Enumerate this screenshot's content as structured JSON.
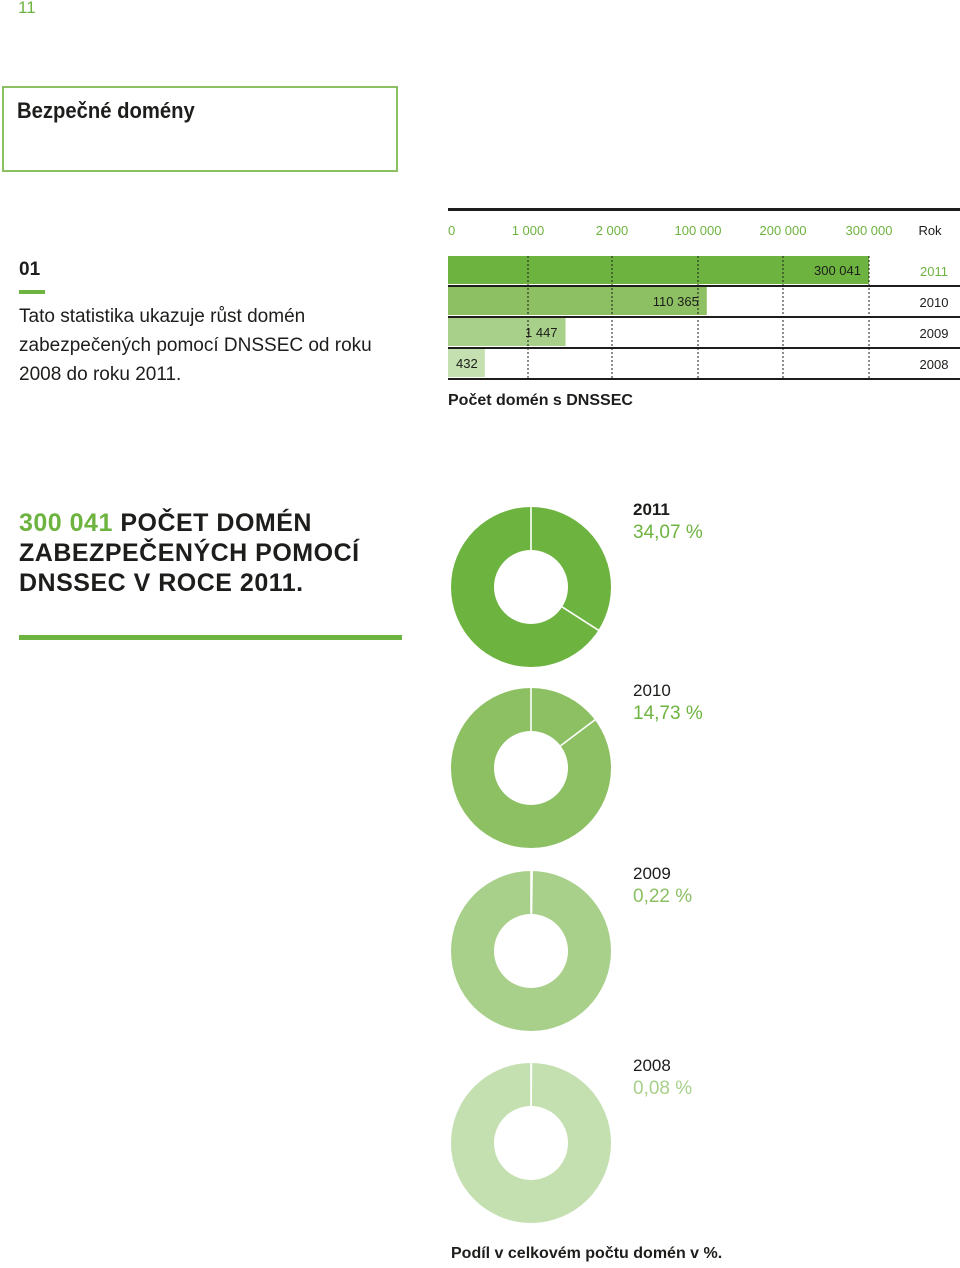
{
  "page_number": "11",
  "title": "Bezpečné domény",
  "section": {
    "number": "01",
    "description": "Tato statistika ukazuje růst domén zabezpečených pomocí DNSSEC od roku 2008 do roku 2011."
  },
  "highlight": {
    "number": "300 041",
    "text": " POČET DOMÉN ZABEZPEČENÝCH POMOCÍ DNSSEC V ROCE 2011."
  },
  "colors": {
    "y2011": "#6db33f",
    "y2010": "#8cc063",
    "y2009": "#a8d08a",
    "y2008": "#c4dfb0",
    "accent": "#6db33f"
  },
  "chart_data": [
    {
      "type": "bar",
      "orientation": "horizontal",
      "axis_scale": "piecewise",
      "xticks": [
        "0",
        "1 000",
        "2 000",
        "100 000",
        "200 000",
        "300 000"
      ],
      "tick_values": [
        0,
        1000,
        2000,
        100000,
        200000,
        300000
      ],
      "year_header": "Rok",
      "categories": [
        "2011",
        "2010",
        "2009",
        "2008"
      ],
      "values": [
        300041,
        110365,
        1447,
        432
      ],
      "value_labels": [
        "300 041",
        "110 365",
        "1 447",
        "432"
      ],
      "xlabel": "Počet domén s DNSSEC"
    },
    {
      "type": "pie",
      "style": "donut",
      "series": [
        {
          "year": "2011",
          "percent": 34.07,
          "label": "34,07 %"
        },
        {
          "year": "2010",
          "percent": 14.73,
          "label": "14,73 %"
        },
        {
          "year": "2009",
          "percent": 0.22,
          "label": "0,22 %"
        },
        {
          "year": "2008",
          "percent": 0.08,
          "label": "0,08 %"
        }
      ],
      "caption": "Podíl v celkovém počtu domén v %."
    }
  ]
}
